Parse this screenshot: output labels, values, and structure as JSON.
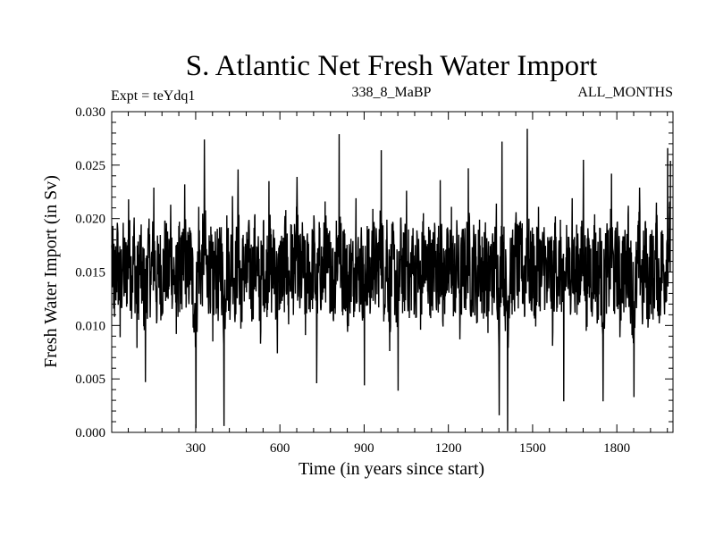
{
  "chart_data": {
    "type": "line",
    "title": "S. Atlantic Net Fresh Water Import",
    "subtitle_left": "Expt = teYdq1",
    "subtitle_center": "338_8_MaBP",
    "subtitle_right": "ALL_MONTHS",
    "xlabel": "Time (in years since start)",
    "ylabel": "Fresh Water Import (in Sv)",
    "xlim": [
      1,
      2000
    ],
    "ylim": [
      0.0,
      0.03
    ],
    "xticks": [
      300,
      600,
      900,
      1200,
      1500,
      1800
    ],
    "xtick_labels": [
      "300",
      "600",
      "900",
      "1200",
      "1500",
      "1800"
    ],
    "yticks": [
      0.0,
      0.005,
      0.01,
      0.015,
      0.02,
      0.025,
      0.03
    ],
    "ytick_labels": [
      "0.000",
      "0.005",
      "0.010",
      "0.015",
      "0.020",
      "0.025",
      "0.030"
    ],
    "series": [
      {
        "name": "Fresh Water Import",
        "color": "#000000",
        "x_start": 1,
        "x_step": 10,
        "mean": 0.015,
        "std": 0.004,
        "values": [
          0.0175,
          0.0108,
          0.0196,
          0.0089,
          0.0172,
          0.0131,
          0.0218,
          0.0143,
          0.0201,
          0.0079,
          0.0184,
          0.0123,
          0.0047,
          0.0191,
          0.0138,
          0.0229,
          0.0102,
          0.0167,
          0.0118,
          0.0198,
          0.0128,
          0.0213,
          0.0141,
          0.0092,
          0.0177,
          0.0115,
          0.0232,
          0.0136,
          0.0189,
          0.0098,
          0.0004,
          0.0211,
          0.0143,
          0.0274,
          0.0126,
          0.0179,
          0.0085,
          0.0167,
          0.0119,
          0.0192,
          0.0006,
          0.0203,
          0.0134,
          0.0221,
          0.0112,
          0.0246,
          0.0097,
          0.0174,
          0.0131,
          0.0188,
          0.0109,
          0.0204,
          0.0146,
          0.0083,
          0.0197,
          0.0121,
          0.0235,
          0.0139,
          0.0182,
          0.0074,
          0.0169,
          0.0129,
          0.0208,
          0.0101,
          0.0194,
          0.0148,
          0.0239,
          0.0116,
          0.0183,
          0.0091,
          0.0172,
          0.0133,
          0.0203,
          0.0046,
          0.0187,
          0.0124,
          0.0216,
          0.0149,
          0.0178,
          0.0104,
          0.0198,
          0.0279,
          0.0137,
          0.0186,
          0.0094,
          0.0161,
          0.0127,
          0.0219,
          0.0142,
          0.0175,
          0.0044,
          0.0193,
          0.0111,
          0.0209,
          0.0147,
          0.0178,
          0.0264,
          0.0119,
          0.0199,
          0.0076,
          0.0176,
          0.0138,
          0.0039,
          0.0201,
          0.0126,
          0.0226,
          0.0107,
          0.0184,
          0.0133,
          0.0172,
          0.0096,
          0.0205,
          0.0142,
          0.0181,
          0.0118,
          0.0196,
          0.0131,
          0.0236,
          0.0099,
          0.0171,
          0.0139,
          0.0211,
          0.0113,
          0.0189,
          0.0087,
          0.0173,
          0.0145,
          0.0247,
          0.0124,
          0.0186,
          0.0102,
          0.0199,
          0.0131,
          0.0179,
          0.0093,
          0.0168,
          0.0138,
          0.0214,
          0.0016,
          0.0272,
          0.0117,
          0.0001,
          0.0182,
          0.0129,
          0.0206,
          0.0148,
          0.0191,
          0.0108,
          0.0284,
          0.0123,
          0.0169,
          0.0099,
          0.0211,
          0.0136,
          0.0192,
          0.0121,
          0.0176,
          0.0081,
          0.0202,
          0.0141,
          0.0183,
          0.0029,
          0.0194,
          0.0128,
          0.0219,
          0.0112,
          0.0186,
          0.0136,
          0.0255,
          0.0095,
          0.0178,
          0.0131,
          0.0204,
          0.0108,
          0.0191,
          0.0029,
          0.0171,
          0.0143,
          0.0242,
          0.0118,
          0.0196,
          0.0089,
          0.0174,
          0.0137,
          0.0212,
          0.0112,
          0.0033,
          0.0131,
          0.0229,
          0.0101,
          0.0196,
          0.0098,
          0.0173,
          0.0123,
          0.0215,
          0.0102,
          0.0189,
          0.0132,
          0.0266,
          0.0254
        ]
      }
    ]
  }
}
